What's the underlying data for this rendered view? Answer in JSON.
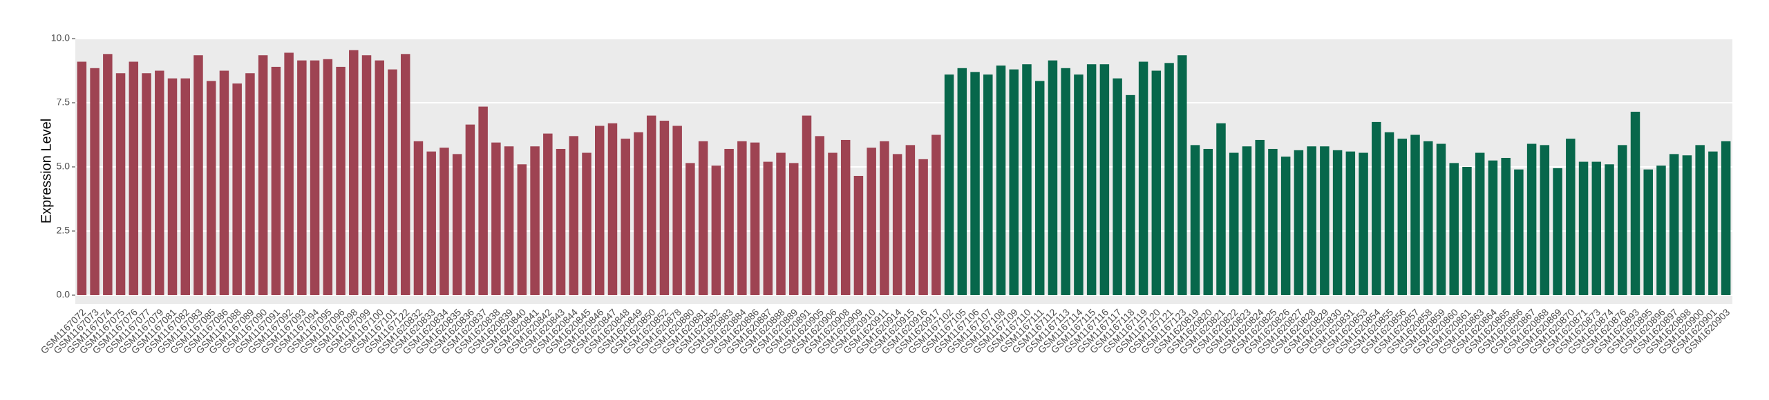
{
  "chart_data": {
    "type": "bar",
    "y_label": "Expression Level",
    "categories": [
      "GSM1167072",
      "GSM1167073",
      "GSM1167074",
      "GSM1167075",
      "GSM1167076",
      "GSM1167077",
      "GSM1167079",
      "GSM1167081",
      "GSM1167082",
      "GSM1167083",
      "GSM1167085",
      "GSM1167086",
      "GSM1167088",
      "GSM1167089",
      "GSM1167090",
      "GSM1167091",
      "GSM1167092",
      "GSM1167093",
      "GSM1167094",
      "GSM1167095",
      "GSM1167096",
      "GSM1167098",
      "GSM1167099",
      "GSM1167100",
      "GSM1167101",
      "GSM1167122",
      "GSM1620832",
      "GSM1620833",
      "GSM1620834",
      "GSM1620835",
      "GSM1620836",
      "GSM1620837",
      "GSM1620838",
      "GSM1620839",
      "GSM1620840",
      "GSM1620841",
      "GSM1620842",
      "GSM1620843",
      "GSM1620844",
      "GSM1620845",
      "GSM1620846",
      "GSM1620847",
      "GSM1620848",
      "GSM1620849",
      "GSM1620850",
      "GSM1620852",
      "GSM1620878",
      "GSM1620880",
      "GSM1620881",
      "GSM1620882",
      "GSM1620883",
      "GSM1620884",
      "GSM1620886",
      "GSM1620887",
      "GSM1620888",
      "GSM1620889",
      "GSM1620891",
      "GSM1620905",
      "GSM1620906",
      "GSM1620908",
      "GSM1620909",
      "GSM1620910",
      "GSM1620911",
      "GSM1620914",
      "GSM1620915",
      "GSM1620916",
      "GSM1620917",
      "GSM1167102",
      "GSM1167105",
      "GSM1167106",
      "GSM1167107",
      "GSM1167108",
      "GSM1167109",
      "GSM1167110",
      "GSM1167111",
      "GSM1167112",
      "GSM1167113",
      "GSM1167114",
      "GSM1167115",
      "GSM1167116",
      "GSM1167117",
      "GSM1167118",
      "GSM1167119",
      "GSM1167120",
      "GSM1167121",
      "GSM1167123",
      "GSM1620819",
      "GSM1620820",
      "GSM1620821",
      "GSM1620822",
      "GSM1620823",
      "GSM1620824",
      "GSM1620825",
      "GSM1620826",
      "GSM1620827",
      "GSM1620828",
      "GSM1620829",
      "GSM1620830",
      "GSM1620831",
      "GSM1620853",
      "GSM1620854",
      "GSM1620855",
      "GSM1620856",
      "GSM1620857",
      "GSM1620858",
      "GSM1620859",
      "GSM1620860",
      "GSM1620861",
      "GSM1620863",
      "GSM1620864",
      "GSM1620865",
      "GSM1620866",
      "GSM1620867",
      "GSM1620868",
      "GSM1620869",
      "GSM1620870",
      "GSM1620871",
      "GSM1620873",
      "GSM1620874",
      "GSM1620876",
      "GSM1620893",
      "GSM1620895",
      "GSM1620896",
      "GSM1620897",
      "GSM1620898",
      "GSM1620900",
      "GSM1620901",
      "GSM1620903"
    ],
    "values": [
      9.1,
      8.85,
      9.4,
      8.65,
      9.1,
      8.65,
      8.75,
      8.45,
      8.45,
      9.35,
      8.35,
      8.75,
      8.25,
      8.65,
      9.35,
      8.9,
      9.45,
      9.15,
      9.15,
      9.2,
      8.9,
      9.55,
      9.35,
      9.15,
      8.8,
      9.4,
      6.0,
      5.6,
      5.75,
      5.5,
      6.65,
      7.35,
      5.95,
      5.8,
      5.1,
      5.8,
      6.3,
      5.7,
      6.2,
      5.55,
      6.6,
      6.7,
      6.1,
      6.35,
      7.0,
      6.8,
      6.6,
      5.15,
      6.0,
      5.05,
      5.7,
      6.0,
      5.95,
      5.2,
      5.55,
      5.15,
      7.0,
      6.2,
      5.55,
      6.05,
      4.65,
      5.75,
      6.0,
      5.5,
      5.85,
      5.3,
      6.25,
      8.6,
      8.85,
      8.7,
      8.6,
      8.95,
      8.8,
      9.0,
      8.35,
      9.15,
      8.85,
      8.6,
      9.0,
      9.0,
      8.45,
      7.8,
      9.1,
      8.75,
      9.05,
      9.35,
      5.85,
      5.7,
      6.7,
      5.55,
      5.8,
      6.05,
      5.7,
      5.4,
      5.65,
      5.8,
      5.8,
      5.65,
      5.6,
      5.55,
      6.75,
      6.35,
      6.1,
      6.25,
      6.0,
      5.9,
      5.15,
      5.0,
      5.55,
      5.25,
      5.35,
      4.9,
      5.9,
      5.85,
      4.95,
      6.1,
      5.2,
      5.2,
      5.1,
      5.85,
      7.15,
      4.9,
      5.05,
      5.5,
      5.45,
      5.85,
      5.6,
      6.0
    ],
    "colors": [
      "#9e4352",
      "#9e4352",
      "#9e4352",
      "#9e4352",
      "#9e4352",
      "#9e4352",
      "#9e4352",
      "#9e4352",
      "#9e4352",
      "#9e4352",
      "#9e4352",
      "#9e4352",
      "#9e4352",
      "#9e4352",
      "#9e4352",
      "#9e4352",
      "#9e4352",
      "#9e4352",
      "#9e4352",
      "#9e4352",
      "#9e4352",
      "#9e4352",
      "#9e4352",
      "#9e4352",
      "#9e4352",
      "#9e4352",
      "#9e4352",
      "#9e4352",
      "#9e4352",
      "#9e4352",
      "#9e4352",
      "#9e4352",
      "#9e4352",
      "#9e4352",
      "#9e4352",
      "#9e4352",
      "#9e4352",
      "#9e4352",
      "#9e4352",
      "#9e4352",
      "#9e4352",
      "#9e4352",
      "#9e4352",
      "#9e4352",
      "#9e4352",
      "#9e4352",
      "#9e4352",
      "#9e4352",
      "#9e4352",
      "#9e4352",
      "#9e4352",
      "#9e4352",
      "#9e4352",
      "#9e4352",
      "#9e4352",
      "#9e4352",
      "#9e4352",
      "#9e4352",
      "#9e4352",
      "#9e4352",
      "#9e4352",
      "#9e4352",
      "#9e4352",
      "#9e4352",
      "#9e4352",
      "#9e4352",
      "#9e4352",
      "#07674b",
      "#07674b",
      "#07674b",
      "#07674b",
      "#07674b",
      "#07674b",
      "#07674b",
      "#07674b",
      "#07674b",
      "#07674b",
      "#07674b",
      "#07674b",
      "#07674b",
      "#07674b",
      "#07674b",
      "#07674b",
      "#07674b",
      "#07674b",
      "#07674b",
      "#07674b",
      "#07674b",
      "#07674b",
      "#07674b",
      "#07674b",
      "#07674b",
      "#07674b",
      "#07674b",
      "#07674b",
      "#07674b",
      "#07674b",
      "#07674b",
      "#07674b",
      "#07674b",
      "#07674b",
      "#07674b",
      "#07674b",
      "#07674b",
      "#07674b",
      "#07674b",
      "#07674b",
      "#07674b",
      "#07674b",
      "#07674b",
      "#07674b",
      "#07674b",
      "#07674b",
      "#07674b",
      "#07674b",
      "#07674b",
      "#07674b",
      "#07674b",
      "#07674b",
      "#07674b",
      "#07674b",
      "#07674b",
      "#07674b",
      "#07674b",
      "#07674b",
      "#07674b",
      "#07674b",
      "#07674b"
    ],
    "ylim": [
      -0.35,
      10.0
    ],
    "yticks": [
      {
        "value": 0,
        "label": "0.0"
      },
      {
        "value": 2.5,
        "label": "2.5"
      },
      {
        "value": 5,
        "label": "5.0"
      },
      {
        "value": 7.5,
        "label": "7.5"
      },
      {
        "value": 10,
        "label": "10.0"
      }
    ],
    "grid": true
  }
}
